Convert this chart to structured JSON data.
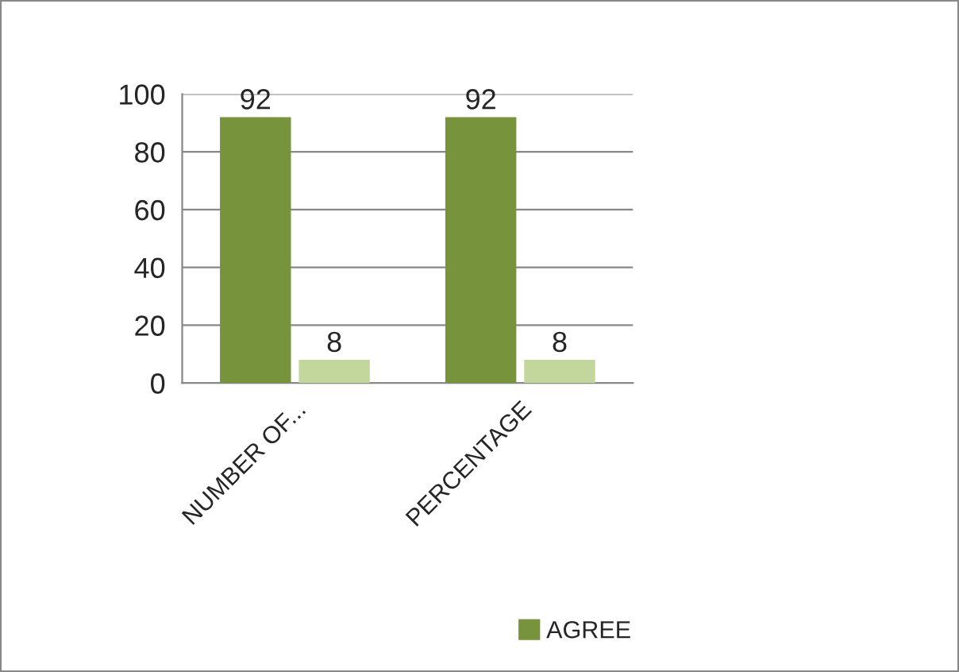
{
  "chart_data": {
    "type": "bar",
    "categories": [
      "NUMBER OF...",
      "PERCENTAGE"
    ],
    "series": [
      {
        "name": "AGREE",
        "color": "#77933c",
        "values": [
          92,
          92
        ]
      },
      {
        "color": "#c3d69b",
        "values": [
          8,
          8
        ]
      }
    ],
    "ylim": [
      0,
      100
    ],
    "yticks": [
      0,
      20,
      40,
      60,
      80,
      100
    ],
    "grid": "y",
    "legend": "bottom",
    "data_labels": true
  }
}
